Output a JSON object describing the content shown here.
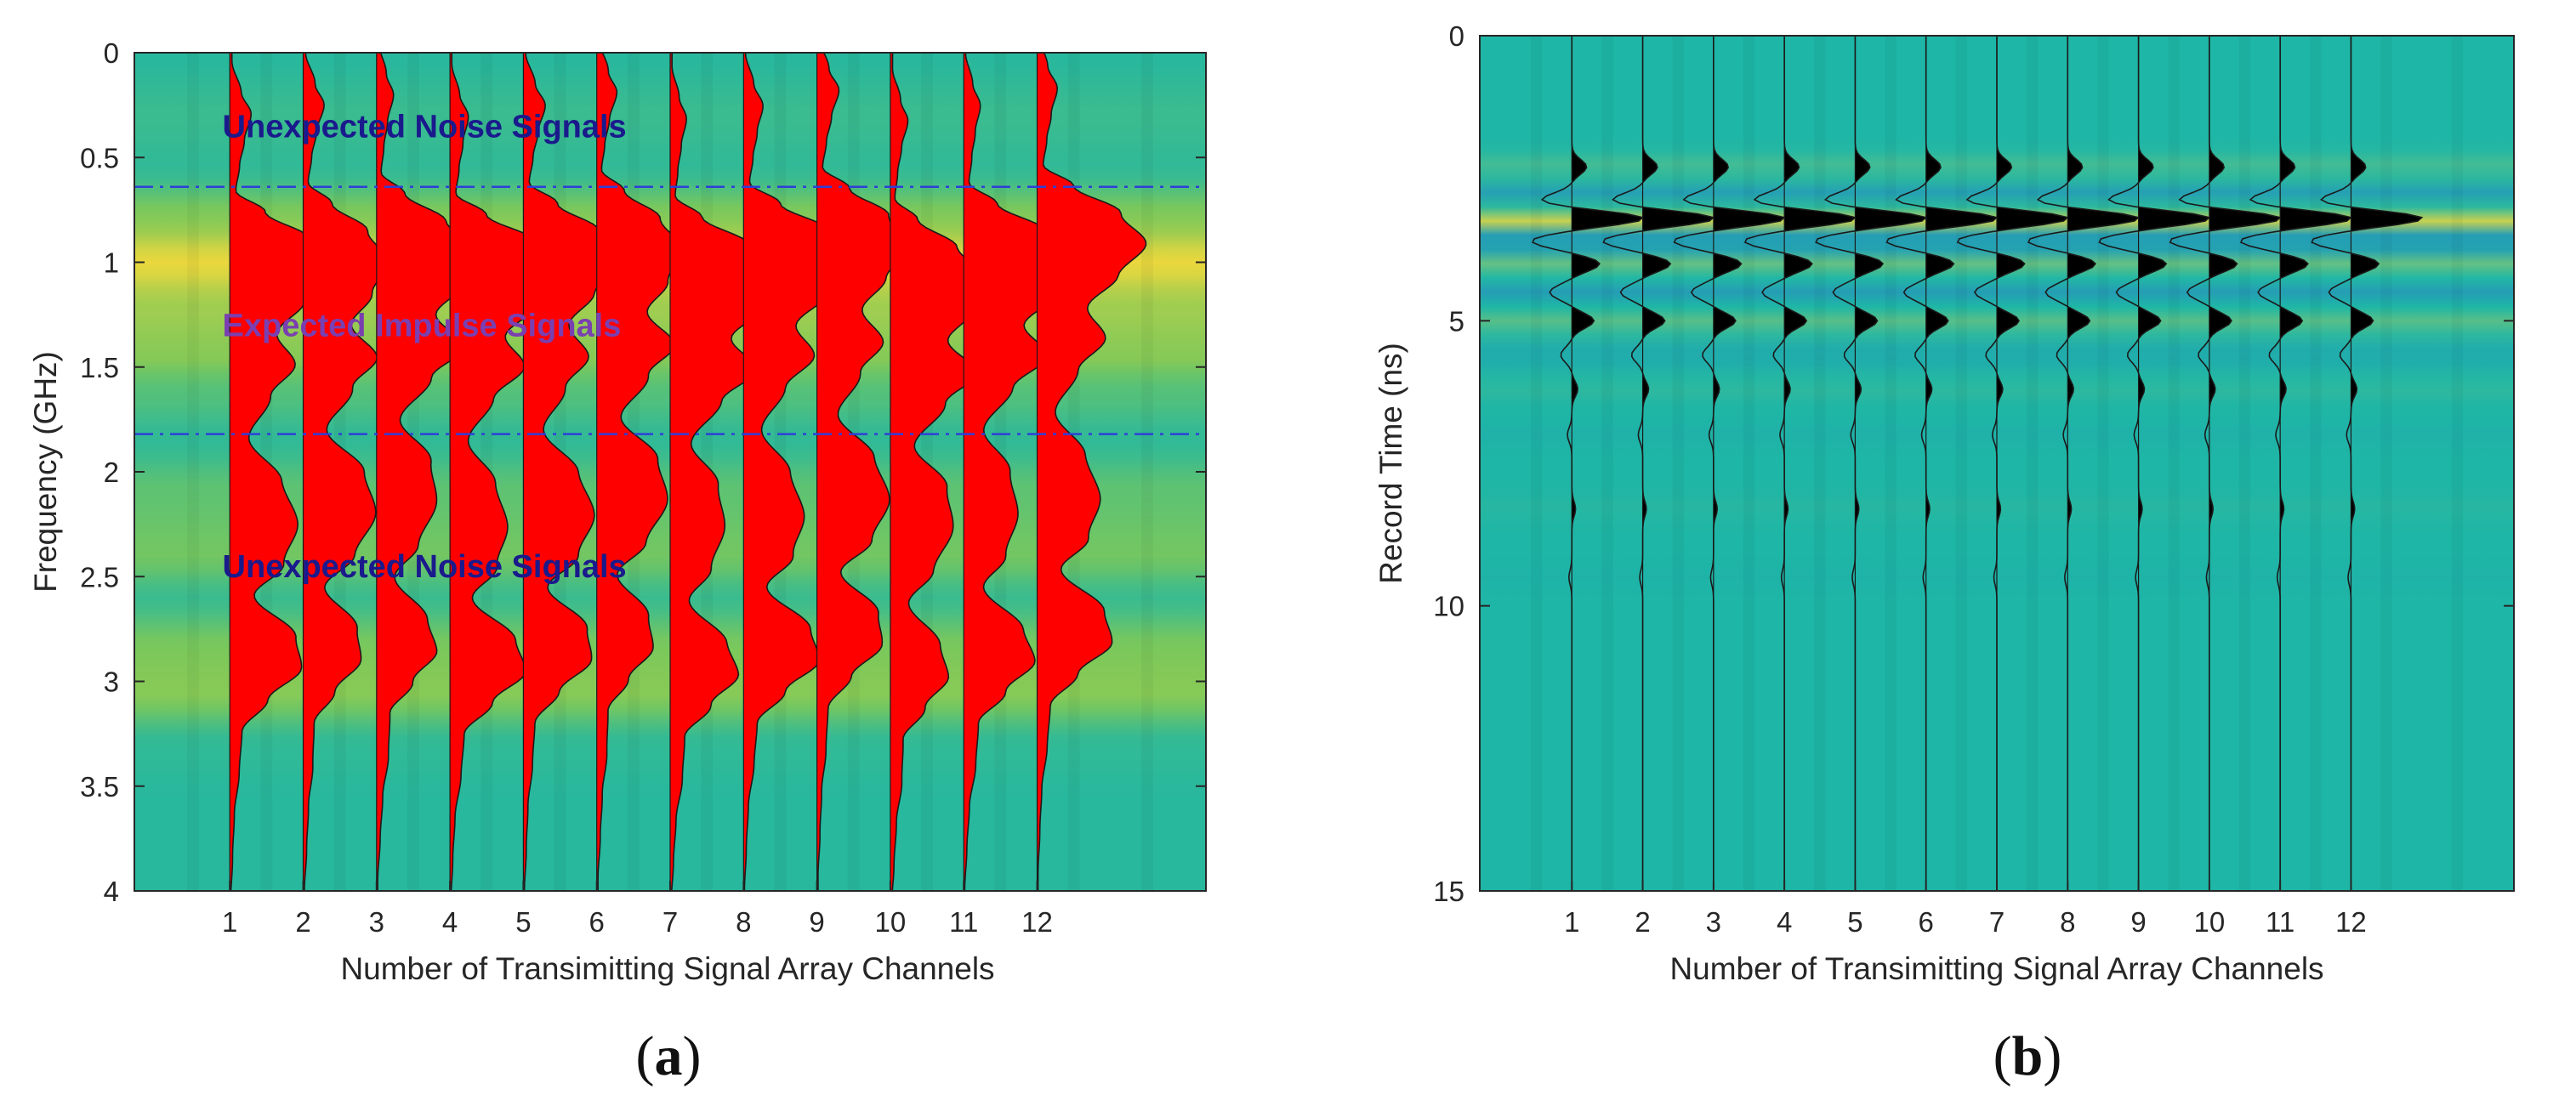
{
  "chart_data": [
    {
      "id": "a",
      "type": "heatmap",
      "overlay": "wiggle-traces",
      "panel_label": "a",
      "xlabel": "Number of Transimitting Signal Array Channels",
      "ylabel": "Frequency (GHz)",
      "ylim": [
        0,
        4
      ],
      "y_reversed": true,
      "yticks": [
        "0",
        "0.5",
        "1",
        "1.5",
        "2",
        "2.5",
        "3",
        "3.5",
        "4"
      ],
      "ytick_values": [
        0,
        0.5,
        1,
        1.5,
        2,
        2.5,
        3,
        3.5,
        4
      ],
      "categories": [
        "1",
        "2",
        "3",
        "4",
        "5",
        "6",
        "7",
        "8",
        "9",
        "10",
        "11",
        "12"
      ],
      "xlim": [
        -0.3,
        14.3
      ],
      "trace_fill": "#ff0000",
      "colormap": {
        "low": "#1eb6a6",
        "mid": "#7cc85a",
        "high": "#f6d93a"
      },
      "background_band_intensity": [
        {
          "y": 0.0,
          "v": 0.05
        },
        {
          "y": 0.3,
          "v": 0.15
        },
        {
          "y": 0.55,
          "v": 0.1
        },
        {
          "y": 0.8,
          "v": 0.55
        },
        {
          "y": 1.0,
          "v": 0.95
        },
        {
          "y": 1.2,
          "v": 0.65
        },
        {
          "y": 1.45,
          "v": 0.55
        },
        {
          "y": 1.6,
          "v": 0.3
        },
        {
          "y": 1.85,
          "v": 0.1
        },
        {
          "y": 2.1,
          "v": 0.35
        },
        {
          "y": 2.4,
          "v": 0.45
        },
        {
          "y": 2.6,
          "v": 0.15
        },
        {
          "y": 2.85,
          "v": 0.5
        },
        {
          "y": 3.05,
          "v": 0.55
        },
        {
          "y": 3.3,
          "v": 0.1
        },
        {
          "y": 3.6,
          "v": 0.05
        },
        {
          "y": 4.0,
          "v": 0.05
        }
      ],
      "trace_envelope": [
        {
          "y": 0.0,
          "a": 0.02
        },
        {
          "y": 0.15,
          "a": 0.1
        },
        {
          "y": 0.25,
          "a": 0.18
        },
        {
          "y": 0.38,
          "a": 0.12
        },
        {
          "y": 0.5,
          "a": 0.08
        },
        {
          "y": 0.62,
          "a": 0.05
        },
        {
          "y": 0.72,
          "a": 0.3
        },
        {
          "y": 0.85,
          "a": 0.7
        },
        {
          "y": 1.0,
          "a": 0.95
        },
        {
          "y": 1.15,
          "a": 0.75
        },
        {
          "y": 1.3,
          "a": 0.5
        },
        {
          "y": 1.45,
          "a": 0.72
        },
        {
          "y": 1.6,
          "a": 0.45
        },
        {
          "y": 1.8,
          "a": 0.2
        },
        {
          "y": 2.0,
          "a": 0.5
        },
        {
          "y": 2.2,
          "a": 0.6
        },
        {
          "y": 2.4,
          "a": 0.45
        },
        {
          "y": 2.55,
          "a": 0.2
        },
        {
          "y": 2.75,
          "a": 0.55
        },
        {
          "y": 2.9,
          "a": 0.62
        },
        {
          "y": 3.05,
          "a": 0.35
        },
        {
          "y": 3.2,
          "a": 0.12
        },
        {
          "y": 3.4,
          "a": 0.1
        },
        {
          "y": 3.6,
          "a": 0.05
        },
        {
          "y": 3.8,
          "a": 0.03
        },
        {
          "y": 4.0,
          "a": 0.01
        }
      ],
      "reference_lines_y": [
        0.64,
        1.82
      ],
      "annotations": [
        {
          "text": "Unexpected Noise Signals",
          "x": 0.9,
          "y": 0.35,
          "color": "#1a1a8c"
        },
        {
          "text": "Expected Impulse Signals",
          "x": 0.9,
          "y": 1.3,
          "color": "#7a3fb0"
        },
        {
          "text": "Unexpected Noise Signals",
          "x": 0.9,
          "y": 2.45,
          "color": "#1a1a8c"
        }
      ]
    },
    {
      "id": "b",
      "type": "heatmap",
      "overlay": "wiggle-traces",
      "panel_label": "b",
      "xlabel": "Number of Transimitting Signal Array Channels",
      "ylabel": "Record Time (ns)",
      "ylim": [
        0,
        15
      ],
      "y_reversed": true,
      "yticks": [
        "0",
        "5",
        "10",
        "15"
      ],
      "ytick_values": [
        0,
        5,
        10,
        15
      ],
      "categories": [
        "1",
        "2",
        "3",
        "4",
        "5",
        "6",
        "7",
        "8",
        "9",
        "10",
        "11",
        "12"
      ],
      "xlim": [
        -0.3,
        14.3
      ],
      "trace_fill": "#000000",
      "colormap": {
        "low": "#3a5ae0",
        "mid": "#1eb6a6",
        "high": "#f6d93a"
      },
      "trace_pulse": [
        {
          "t": 2.3,
          "a": 0.2
        },
        {
          "t": 2.9,
          "a": -0.45
        },
        {
          "t": 3.2,
          "a": 1.0
        },
        {
          "t": 3.6,
          "a": -0.55
        },
        {
          "t": 4.0,
          "a": 0.38
        },
        {
          "t": 4.5,
          "a": -0.3
        },
        {
          "t": 5.0,
          "a": 0.3
        },
        {
          "t": 5.6,
          "a": -0.15
        },
        {
          "t": 6.2,
          "a": 0.08
        },
        {
          "t": 7.0,
          "a": -0.06
        },
        {
          "t": 8.3,
          "a": 0.05
        },
        {
          "t": 9.5,
          "a": -0.04
        }
      ]
    }
  ]
}
